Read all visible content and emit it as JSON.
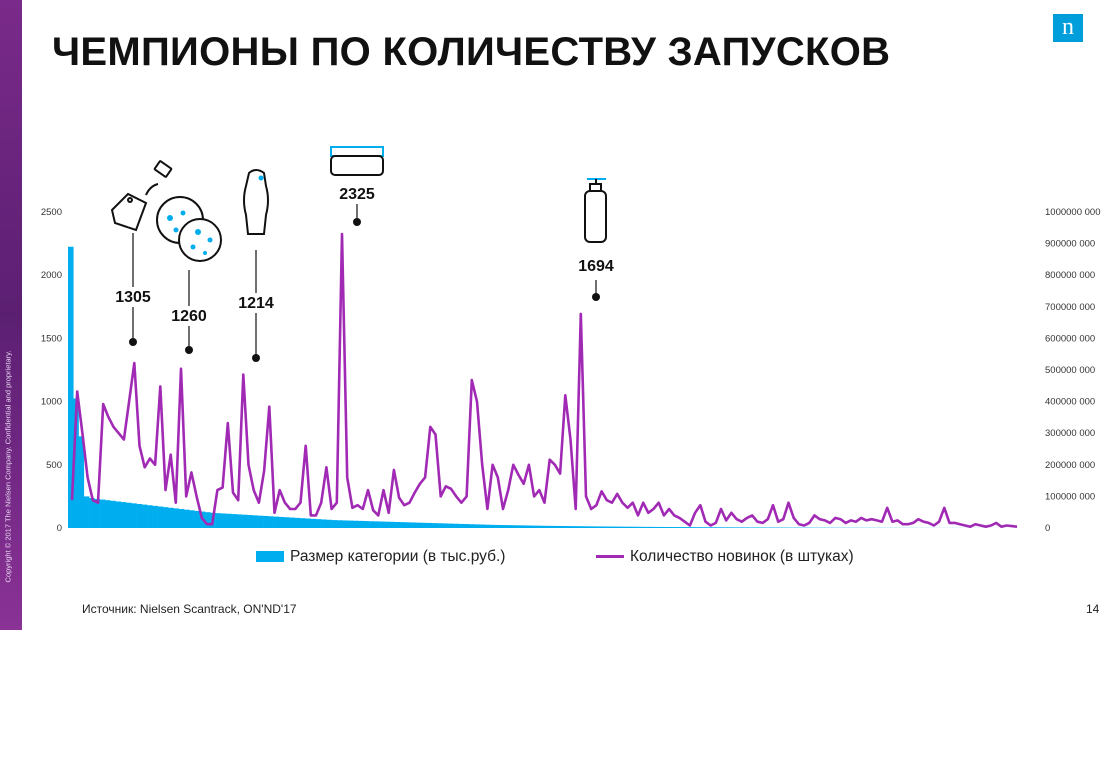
{
  "slide": {
    "title": "ЧЕМПИОНЫ ПО КОЛИЧЕСТВУ ЗАПУСКОВ",
    "copyright": "Copyright © 2017 The Nielsen Company. Confidential and proprietary.",
    "logo": "n",
    "source": "Источник: Nielsen Scantrack, ON'ND'17",
    "page_number": "14"
  },
  "colors": {
    "bars": "#00aeef",
    "line": "#a12ab5",
    "icons": "#00aeef",
    "logo": "#009fdb"
  },
  "chart_data": {
    "type": "bar",
    "title": "",
    "legend_placement": "bottom",
    "left_axis": {
      "ticks": [
        "0",
        "500",
        "1000",
        "1500",
        "2000",
        "2500"
      ],
      "range": [
        0,
        2500
      ]
    },
    "right_axis": {
      "ticks": [
        "0",
        "100000 000",
        "200000 000",
        "300000 000",
        "400000 000",
        "500000 000",
        "600000 000",
        "700000 000",
        "800000 000",
        "900000 000",
        "1000000 000"
      ],
      "range": [
        0,
        1000000000
      ]
    },
    "series": [
      {
        "name": "Размер категории (в тыс.руб.)",
        "type": "bar",
        "axis": "right",
        "values": [
          890000000,
          410000000,
          290000000,
          100000000,
          95000000,
          92000000,
          90000000,
          88000000,
          86000000,
          84000000,
          82000000,
          80000000,
          78000000,
          76000000,
          74000000,
          72000000,
          70000000,
          68000000,
          66000000,
          64000000,
          62000000,
          60000000,
          58000000,
          56000000,
          54000000,
          52000000,
          50000000,
          48000000,
          47000000,
          46000000,
          45000000,
          44000000,
          43000000,
          42000000,
          41000000,
          40000000,
          39000000,
          38000000,
          37000000,
          36000000,
          35000000,
          34000000,
          33000000,
          32000000,
          31000000,
          30000000,
          29000000,
          28000000,
          27000000,
          26000000,
          25000000,
          24500000,
          24000000,
          23500000,
          23000000,
          22500000,
          22000000,
          21500000,
          21000000,
          20500000,
          20000000,
          19500000,
          19000000,
          18500000,
          18000000,
          17500000,
          17000000,
          16500000,
          16000000,
          15500000,
          15000000,
          14500000,
          14000000,
          13500000,
          13000000,
          12500000,
          12000000,
          11500000,
          11000000,
          10500000,
          10000000,
          9700000,
          9400000,
          9100000,
          8800000,
          8500000,
          8200000,
          7900000,
          7600000,
          7300000,
          7000000,
          6800000,
          6600000,
          6400000,
          6200000,
          6000000,
          5800000,
          5600000,
          5400000,
          5200000,
          5000000,
          4850000,
          4700000,
          4550000,
          4400000,
          4250000,
          4100000,
          3950000,
          3800000,
          3650000,
          3500000,
          3400000,
          3300000,
          3200000,
          3100000,
          3000000,
          2900000,
          2800000,
          2700000,
          2600000,
          2500000,
          2420000,
          2340000,
          2260000,
          2180000,
          2100000,
          2020000,
          1940000,
          1860000,
          1780000,
          1700000,
          1640000,
          1580000,
          1520000,
          1460000,
          1400000,
          1340000,
          1280000,
          1220000,
          1160000,
          1100000,
          1060000,
          1020000,
          980000,
          940000,
          900000,
          860000,
          820000,
          780000,
          740000,
          700000,
          670000,
          640000,
          610000,
          580000,
          550000,
          520000,
          490000,
          460000,
          430000,
          400000,
          380000,
          360000,
          340000,
          320000,
          300000,
          280000,
          260000,
          240000,
          220000,
          200000,
          185000,
          170000,
          155000,
          140000,
          125000,
          110000,
          95000,
          80000,
          65000
        ]
      },
      {
        "name": "Количество новинок (в штуках)",
        "type": "line",
        "axis": "left",
        "values": [
          220,
          1080,
          750,
          400,
          220,
          200,
          980,
          880,
          800,
          750,
          700,
          1000,
          1305,
          650,
          480,
          550,
          500,
          1120,
          300,
          580,
          200,
          1260,
          250,
          440,
          250,
          80,
          30,
          30,
          300,
          320,
          830,
          280,
          220,
          1214,
          500,
          300,
          200,
          450,
          960,
          120,
          300,
          200,
          150,
          150,
          200,
          650,
          100,
          100,
          200,
          480,
          150,
          200,
          2325,
          400,
          160,
          180,
          150,
          300,
          140,
          100,
          300,
          120,
          460,
          240,
          180,
          200,
          280,
          350,
          400,
          800,
          740,
          250,
          330,
          310,
          250,
          200,
          250,
          1170,
          1000,
          500,
          150,
          500,
          400,
          150,
          300,
          500,
          420,
          350,
          500,
          250,
          300,
          200,
          540,
          500,
          430,
          1050,
          700,
          150,
          1694,
          250,
          150,
          180,
          290,
          220,
          200,
          270,
          200,
          160,
          200,
          100,
          200,
          120,
          150,
          200,
          100,
          150,
          100,
          80,
          50,
          20,
          120,
          180,
          50,
          20,
          40,
          150,
          60,
          120,
          70,
          50,
          80,
          100,
          50,
          40,
          70,
          180,
          50,
          70,
          200,
          80,
          30,
          20,
          40,
          100,
          70,
          60,
          40,
          80,
          70,
          40,
          60,
          50,
          80,
          60,
          70,
          60,
          50,
          160,
          50,
          60,
          30,
          30,
          40,
          70,
          50,
          40,
          20,
          50,
          160,
          40,
          40,
          30,
          20,
          10,
          30,
          20,
          10,
          20,
          40,
          10,
          20,
          15,
          10
        ]
      }
    ],
    "annotations": [
      {
        "label": "1305",
        "value": 1305,
        "icon": "perfume-bottle-icon"
      },
      {
        "label": "1260",
        "value": 1260,
        "icon": "cotton-pads-icon"
      },
      {
        "label": "1214",
        "value": 1214,
        "icon": "shampoo-bottle-icon"
      },
      {
        "label": "2325",
        "value": 2325,
        "icon": "cream-jar-icon"
      },
      {
        "label": "1694",
        "value": 1694,
        "icon": "pump-bottle-icon"
      }
    ]
  }
}
